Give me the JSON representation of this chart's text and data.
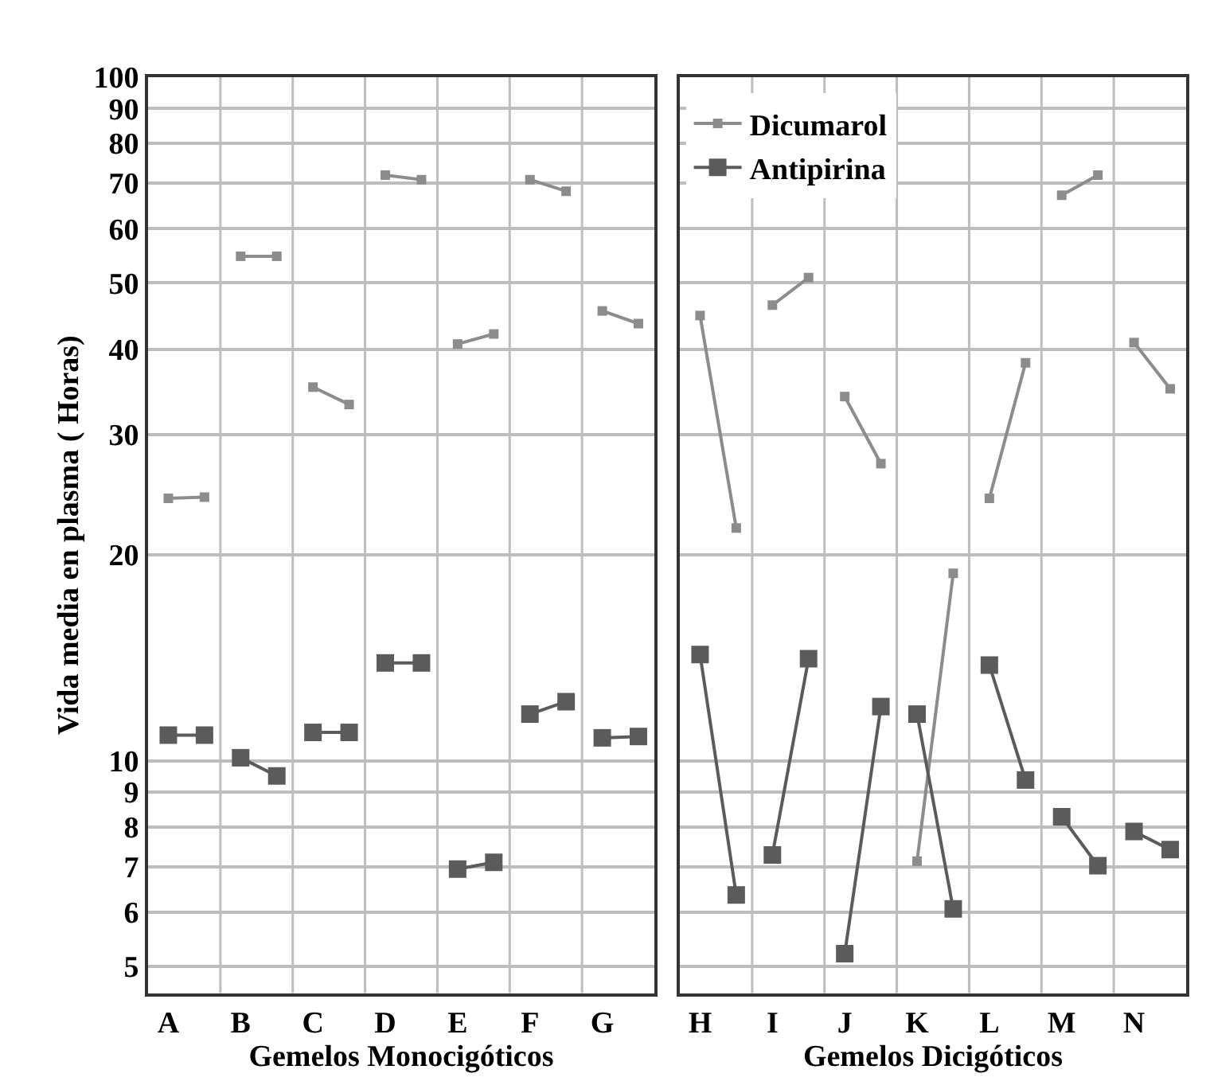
{
  "chart_data": [
    {
      "type": "line",
      "ylabel": "Vida media en plasma ( Horas)",
      "xlabel": "Gemelos Monocigóticos",
      "log": "y",
      "grid": true,
      "legend": false,
      "marker": "square",
      "line_style": "solid",
      "categories": [
        "A",
        null,
        "B",
        null,
        "C",
        null,
        "D",
        null,
        "E",
        null,
        "F",
        null,
        "G",
        null
      ],
      "ylim": [
        4.57,
        100
      ],
      "yticks": [
        5,
        6,
        7,
        8,
        9,
        10,
        20,
        30,
        40,
        50,
        60,
        70,
        80,
        90,
        100
      ],
      "series": [
        {
          "color": "#8c8c8c",
          "values": [
            24.2,
            24.3,
            54.7,
            54.7,
            35.2,
            33.2,
            71.9,
            70.8,
            40.7,
            42.1,
            70.8,
            68.1,
            45.5,
            43.6
          ]
        },
        {
          "color": "#5b5b5b",
          "values": [
            10.9,
            10.9,
            10.1,
            9.5,
            11.0,
            11.0,
            13.9,
            13.9,
            6.94,
            7.1,
            11.7,
            12.2,
            10.8,
            10.85
          ]
        }
      ]
    },
    {
      "type": "line",
      "xlabel": "Gemelos Dicigóticos",
      "log": "y",
      "grid": true,
      "legend": "top left",
      "marker": "square",
      "line_style": "solid",
      "tick_labels": "x",
      "categories": [
        "H",
        null,
        "I",
        null,
        "J",
        null,
        "K",
        null,
        "L",
        null,
        "M",
        null,
        "N",
        null
      ],
      "ylim": [
        4.57,
        100
      ],
      "yticks": [
        5,
        6,
        7,
        8,
        9,
        10,
        20,
        30,
        40,
        50,
        60,
        70,
        80,
        90,
        100
      ],
      "series": [
        {
          "name": "Dicumarol",
          "color": "#8c8c8c",
          "values": [
            44.8,
            21.9,
            46.4,
            50.9,
            34.1,
            27.2,
            7.13,
            18.8,
            24.2,
            38.2,
            67.2,
            71.9,
            40.9,
            35.0
          ]
        },
        {
          "name": "Antipirina",
          "color": "#5b5b5b",
          "values": [
            14.3,
            6.36,
            7.28,
            14.1,
            5.22,
            12.0,
            11.7,
            6.07,
            13.8,
            9.37,
            8.28,
            7.02,
            7.88,
            7.41
          ]
        }
      ]
    }
  ]
}
